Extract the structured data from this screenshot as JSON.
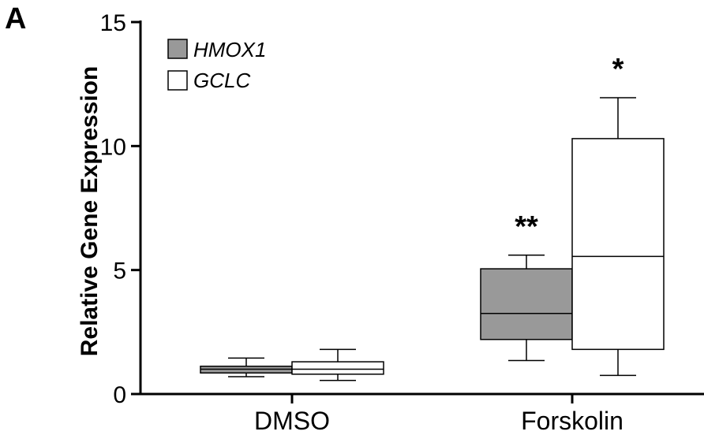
{
  "panel_label": "A",
  "chart_data": {
    "type": "box",
    "ylabel": "Relative Gene Expression",
    "xlabel": "",
    "ylim": [
      0,
      15
    ],
    "yticks": [
      "0",
      "5",
      "10",
      "15"
    ],
    "categories": [
      "DMSO",
      "Forskolin"
    ],
    "legend_position": "top-left",
    "series": [
      {
        "name": "HMOX1",
        "color": "#999999",
        "boxes": [
          {
            "category": "DMSO",
            "whisker_low": 0.7,
            "q1": 0.85,
            "median": 1.0,
            "q3": 1.12,
            "whisker_high": 1.45,
            "significance": ""
          },
          {
            "category": "Forskolin",
            "whisker_low": 1.35,
            "q1": 2.2,
            "median": 3.25,
            "q3": 5.05,
            "whisker_high": 5.6,
            "significance": "**"
          }
        ]
      },
      {
        "name": "GCLC",
        "color": "#ffffff",
        "boxes": [
          {
            "category": "DMSO",
            "whisker_low": 0.55,
            "q1": 0.8,
            "median": 1.0,
            "q3": 1.3,
            "whisker_high": 1.8,
            "significance": ""
          },
          {
            "category": "Forskolin",
            "whisker_low": 0.75,
            "q1": 1.8,
            "median": 5.55,
            "q3": 10.3,
            "whisker_high": 11.95,
            "significance": "*"
          }
        ]
      }
    ]
  }
}
